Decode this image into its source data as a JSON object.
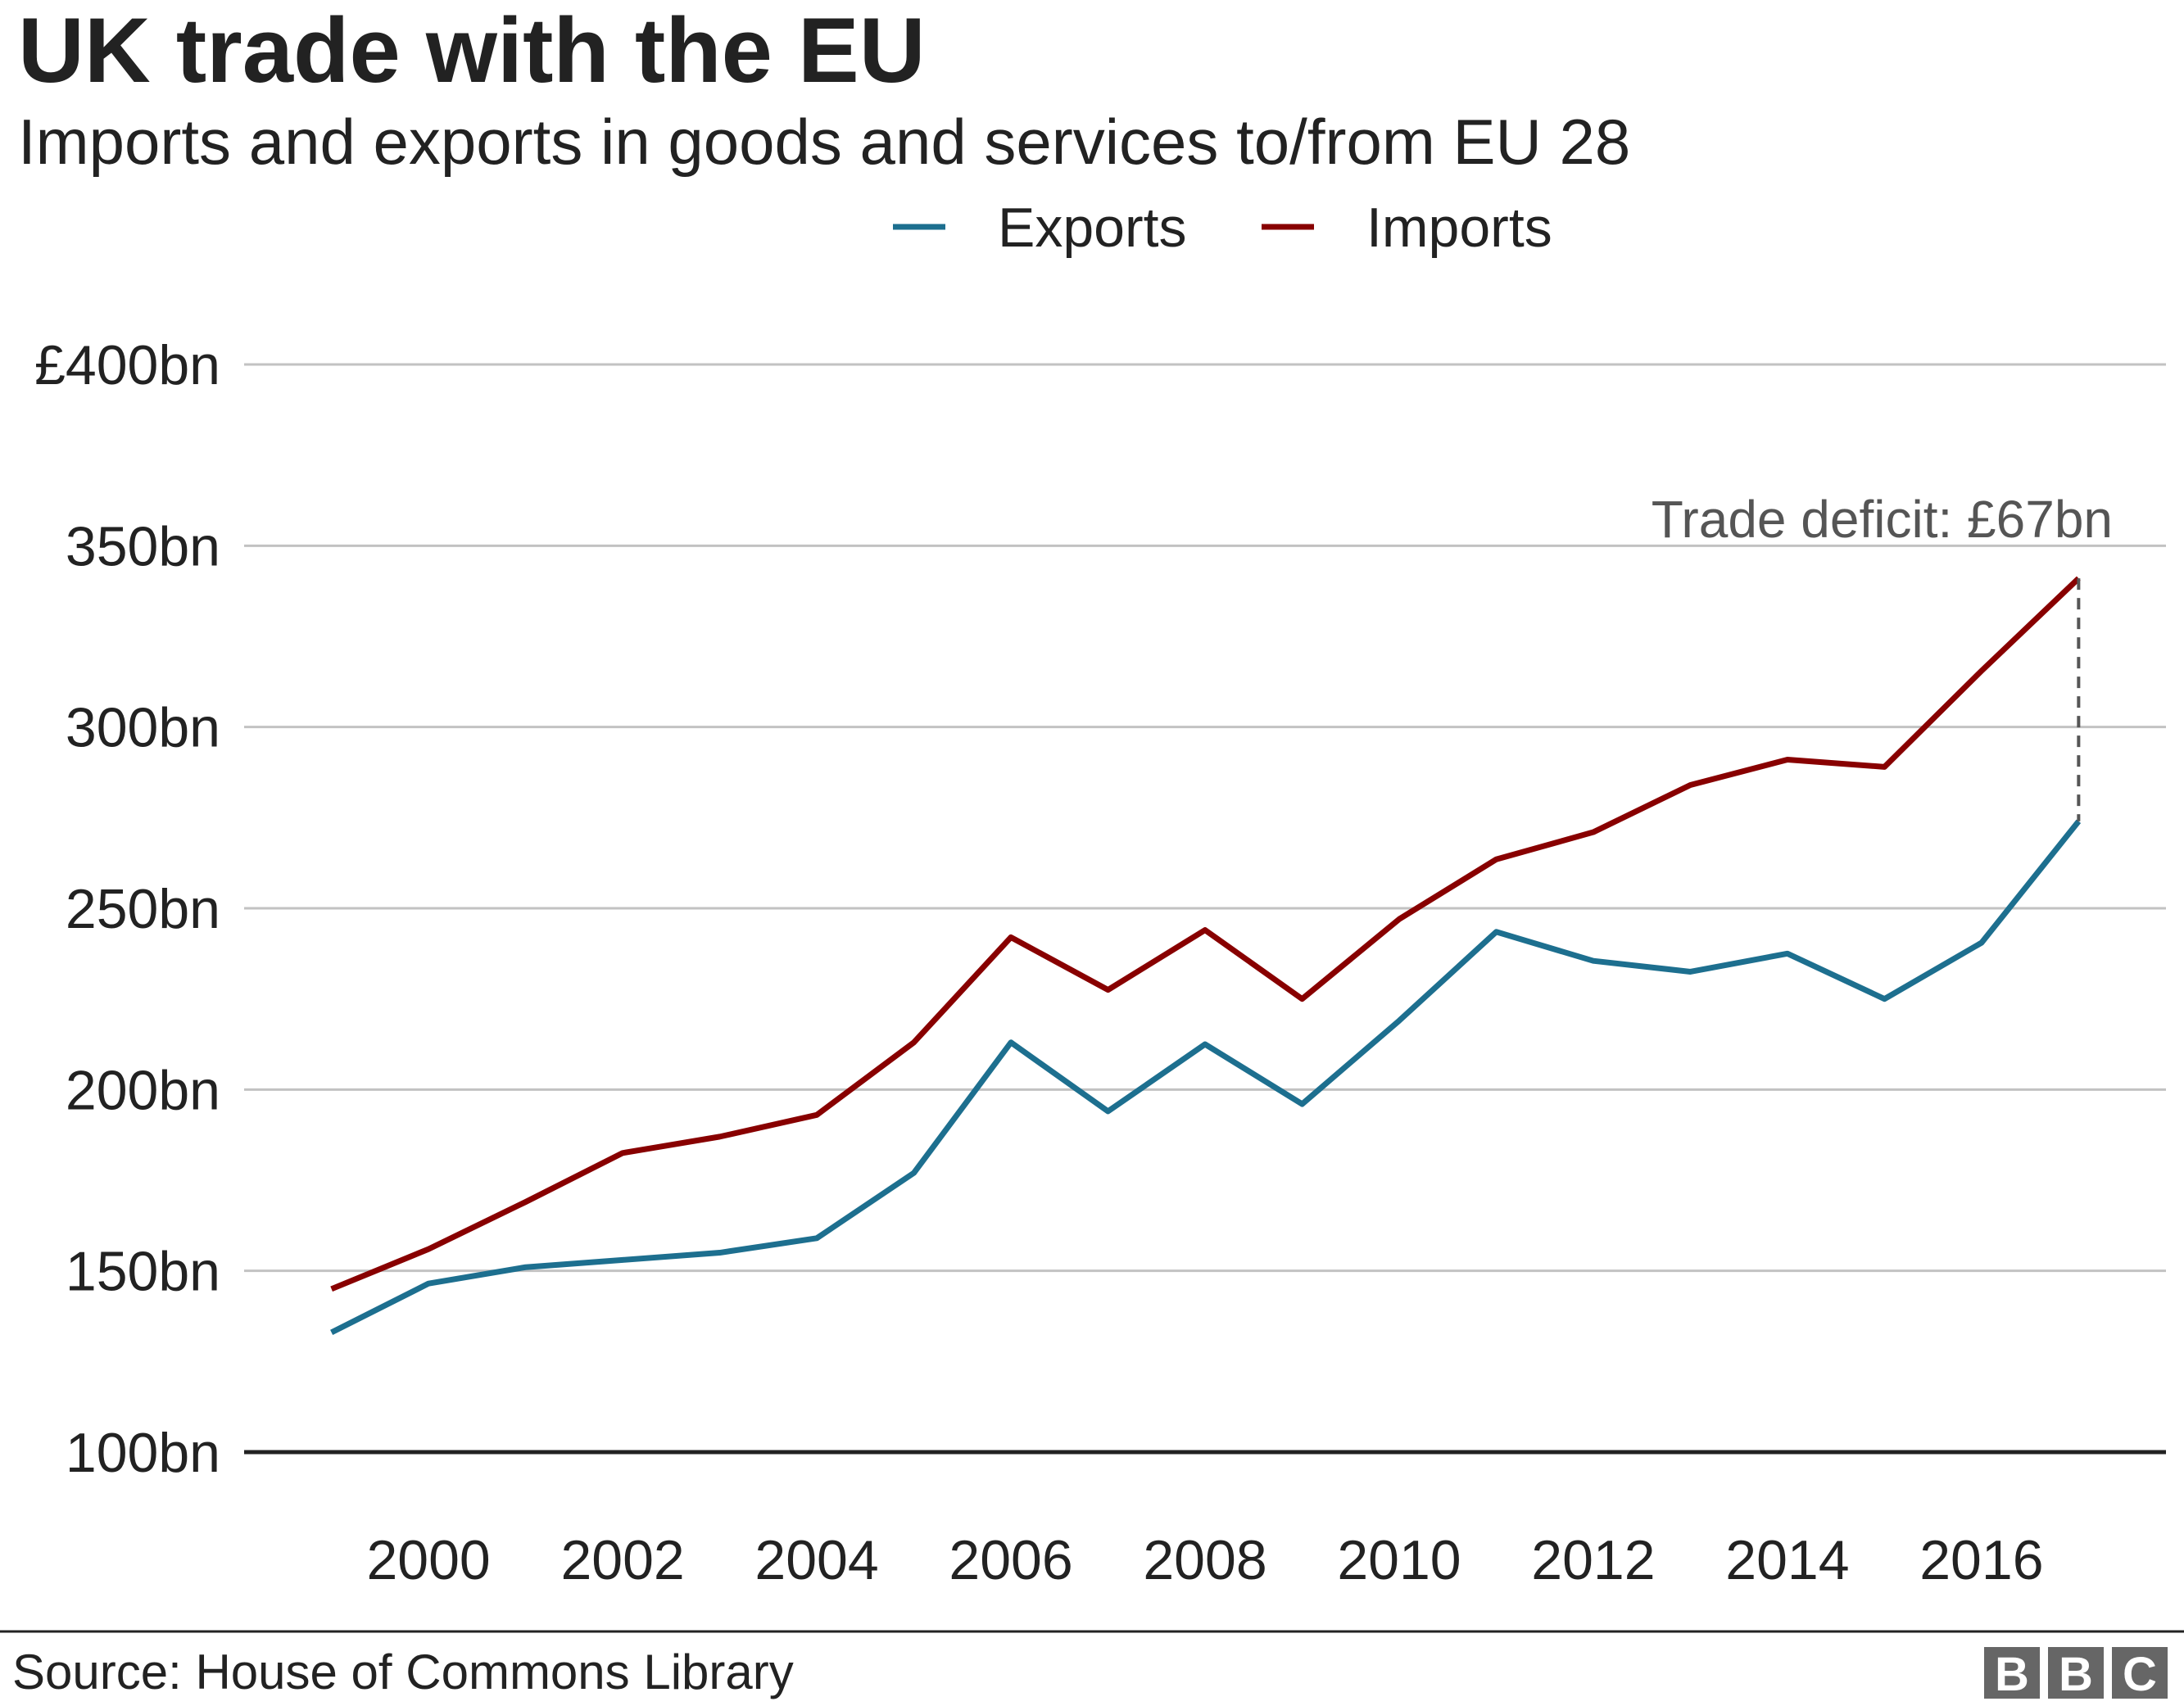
{
  "chart_data": {
    "type": "line",
    "title": "UK trade with the EU",
    "subtitle": "Imports and exports in goods and services to/from EU 28",
    "x": [
      1999,
      2000,
      2001,
      2002,
      2003,
      2004,
      2005,
      2006,
      2007,
      2008,
      2009,
      2010,
      2011,
      2012,
      2013,
      2014,
      2015,
      2016,
      2017
    ],
    "series": [
      {
        "name": "Exports",
        "color": "#1d6f8f",
        "values": [
          133,
          146.5,
          151,
          153,
          155,
          159,
          177,
          213,
          194,
          212.5,
          196,
          219,
          243.5,
          235.5,
          232.5,
          237.5,
          225,
          240.5,
          274
        ]
      },
      {
        "name": "Imports",
        "color": "#880000",
        "values": [
          145,
          156,
          169,
          182.5,
          187,
          193,
          213,
          242,
          227.5,
          244,
          225,
          247,
          263.5,
          271,
          284,
          291,
          289,
          315.5,
          341
        ]
      }
    ],
    "xlim": [
      1998.1,
      2017.9
    ],
    "xticks": [
      2000,
      2002,
      2004,
      2006,
      2008,
      2010,
      2012,
      2014,
      2016
    ],
    "ylim": [
      100,
      400
    ],
    "yticks": [
      {
        "value": 100,
        "label": "100bn"
      },
      {
        "value": 150,
        "label": "150bn"
      },
      {
        "value": 200,
        "label": "200bn"
      },
      {
        "value": 250,
        "label": "250bn"
      },
      {
        "value": 300,
        "label": "300bn"
      },
      {
        "value": 350,
        "label": "350bn"
      },
      {
        "value": 400,
        "label": "£400bn"
      }
    ],
    "grid": true,
    "legend": "top",
    "annotation": "Trade deficit: £67bn",
    "source": "Source: House of Commons Library",
    "logo": "BBC"
  }
}
